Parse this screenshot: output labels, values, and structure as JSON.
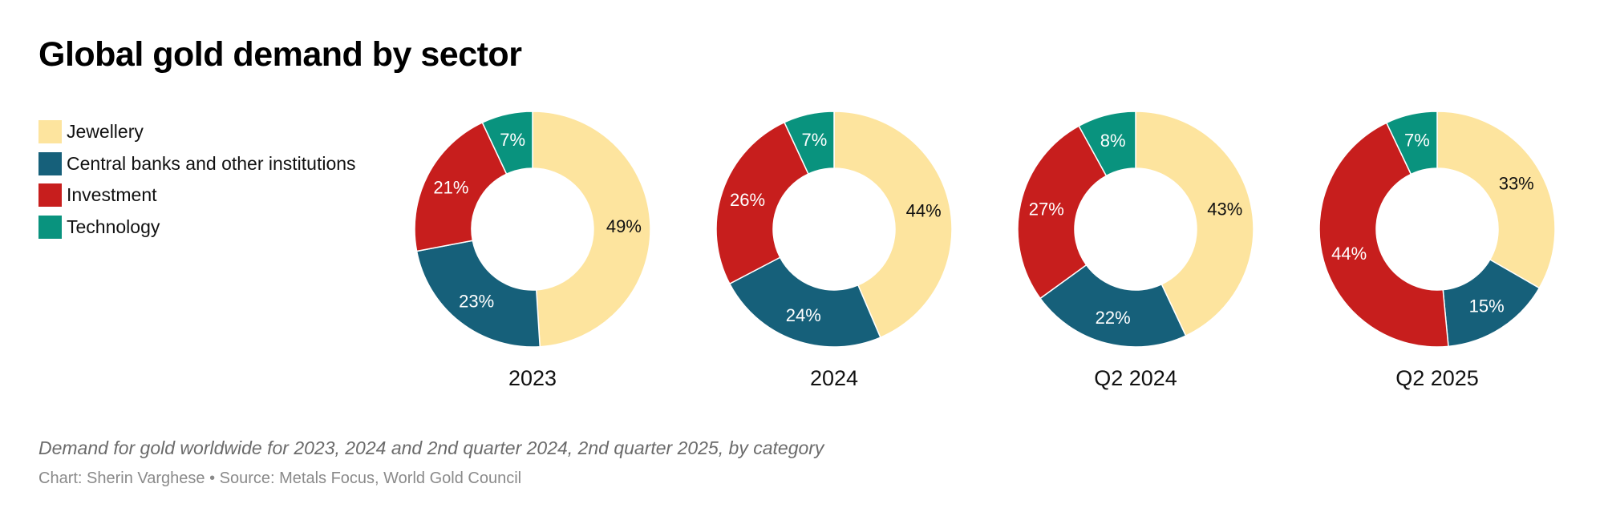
{
  "title": "Global gold demand by sector",
  "legend": [
    {
      "label": "Jewellery",
      "color": "#fde49e"
    },
    {
      "label": "Central banks and other institutions",
      "color": "#16607a"
    },
    {
      "label": "Investment",
      "color": "#c71e1d"
    },
    {
      "label": "Technology",
      "color": "#09937e"
    }
  ],
  "chart_data": {
    "type": "pie",
    "variant": "donut",
    "series_order": [
      "Jewellery",
      "Central banks and other institutions",
      "Investment",
      "Technology"
    ],
    "charts": [
      {
        "label": "2023",
        "values": [
          49,
          23,
          21,
          7
        ],
        "value_labels": [
          "49%",
          "23%",
          "21%",
          "7%"
        ]
      },
      {
        "label": "2024",
        "values": [
          44,
          24,
          26,
          7
        ],
        "value_labels": [
          "44%",
          "24%",
          "26%",
          "7%"
        ]
      },
      {
        "label": "Q2 2024",
        "values": [
          43,
          22,
          27,
          8
        ],
        "value_labels": [
          "43%",
          "22%",
          "27%",
          "8%"
        ]
      },
      {
        "label": "Q2 2025",
        "values": [
          33,
          15,
          44,
          7
        ],
        "value_labels": [
          "33%",
          "15%",
          "44%",
          "7%"
        ]
      }
    ],
    "label_colors": [
      "#111111",
      "#ffffff",
      "#ffffff",
      "#ffffff"
    ]
  },
  "caption": "Demand for gold worldwide for 2023, 2024 and 2nd quarter 2024, 2nd quarter 2025, by category",
  "credit": "Chart: Sherin Varghese • Source: Metals Focus, World Gold Council"
}
